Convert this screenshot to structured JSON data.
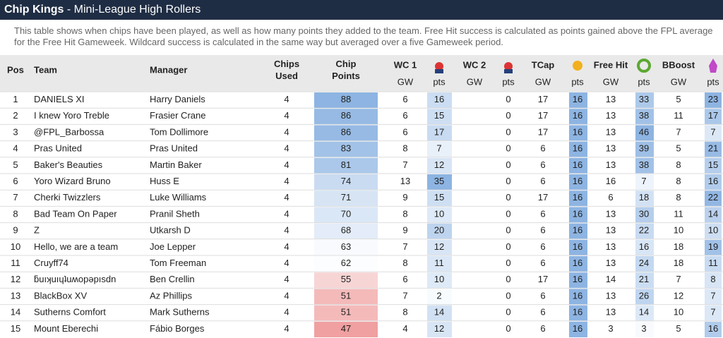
{
  "header": {
    "title": "Chip Kings",
    "subtitle": "- Mini-League High Rollers"
  },
  "description": "This table shows when chips have been played, as well as how many points they added to the team. Free Hit success is calculated as points gained above the FPL average for the Free Hit Gameweek. Wildcard success is calculated in the same way but averaged over a five Gameweek period.",
  "table": {
    "columns": [
      "Pos",
      "Team",
      "Manager",
      "Chips Used",
      "Chip Points"
    ],
    "groups": [
      {
        "name": "WC 1",
        "sub": [
          "GW",
          "pts"
        ]
      },
      {
        "name": "WC 2",
        "sub": [
          "GW",
          "pts"
        ]
      },
      {
        "name": "TCap",
        "sub": [
          "GW",
          "pts"
        ]
      },
      {
        "name": "Free Hit",
        "sub": [
          "GW",
          "pts"
        ]
      },
      {
        "name": "BBoost",
        "sub": [
          "GW",
          "pts"
        ]
      }
    ],
    "rows": [
      [
        1,
        "DANIELS XI",
        "Harry Daniels",
        4,
        88,
        6,
        16,
        null,
        0,
        17,
        16,
        13,
        33,
        5,
        23
      ],
      [
        2,
        "I knew Yoro Treble",
        "Frasier Crane",
        4,
        86,
        6,
        15,
        null,
        0,
        17,
        16,
        13,
        38,
        11,
        17
      ],
      [
        3,
        "@FPL_Barbossa",
        "Tom Dollimore",
        4,
        86,
        6,
        17,
        null,
        0,
        17,
        16,
        13,
        46,
        7,
        7
      ],
      [
        4,
        "Pras United",
        "Pras United",
        4,
        83,
        8,
        7,
        null,
        0,
        6,
        16,
        13,
        39,
        5,
        21
      ],
      [
        5,
        "Baker's Beauties",
        "Martin Baker",
        4,
        81,
        7,
        12,
        null,
        0,
        6,
        16,
        13,
        38,
        8,
        15
      ],
      [
        6,
        "Yoro Wizard Bruno",
        "Huss E",
        4,
        74,
        13,
        35,
        null,
        0,
        6,
        16,
        16,
        7,
        8,
        16
      ],
      [
        7,
        "Cherki Twizzlers",
        "Luke Williams",
        4,
        71,
        9,
        15,
        null,
        0,
        17,
        16,
        6,
        18,
        8,
        22
      ],
      [
        8,
        "Bad Team On Paper",
        "Pranil Sheth",
        4,
        70,
        8,
        10,
        null,
        0,
        6,
        16,
        13,
        30,
        11,
        14
      ],
      [
        9,
        "Z",
        "Utkarsh D",
        4,
        68,
        9,
        20,
        null,
        0,
        6,
        16,
        13,
        22,
        10,
        10
      ],
      [
        10,
        "Hello, we are a team",
        "Joe Lepper",
        4,
        63,
        7,
        12,
        null,
        0,
        6,
        16,
        13,
        16,
        18,
        19
      ],
      [
        11,
        "Cruyff74",
        "Tom Freeman",
        4,
        62,
        8,
        11,
        null,
        0,
        6,
        16,
        13,
        24,
        18,
        11
      ],
      [
        12,
        "ƃuıʞuıɥʇuʍopǝpısdn",
        "Ben Crellin",
        4,
        55,
        6,
        10,
        null,
        0,
        17,
        16,
        14,
        21,
        7,
        8
      ],
      [
        13,
        "BlackBox XV",
        "Az Phillips",
        4,
        51,
        7,
        2,
        null,
        0,
        6,
        16,
        13,
        26,
        12,
        7
      ],
      [
        14,
        "Sutherns Comfort",
        "Mark Sutherns",
        4,
        51,
        8,
        14,
        null,
        0,
        6,
        16,
        13,
        14,
        10,
        7
      ],
      [
        15,
        "Mount Eberechi",
        "Fábio Borges",
        4,
        47,
        4,
        12,
        null,
        0,
        6,
        16,
        3,
        3,
        5,
        16
      ]
    ]
  }
}
